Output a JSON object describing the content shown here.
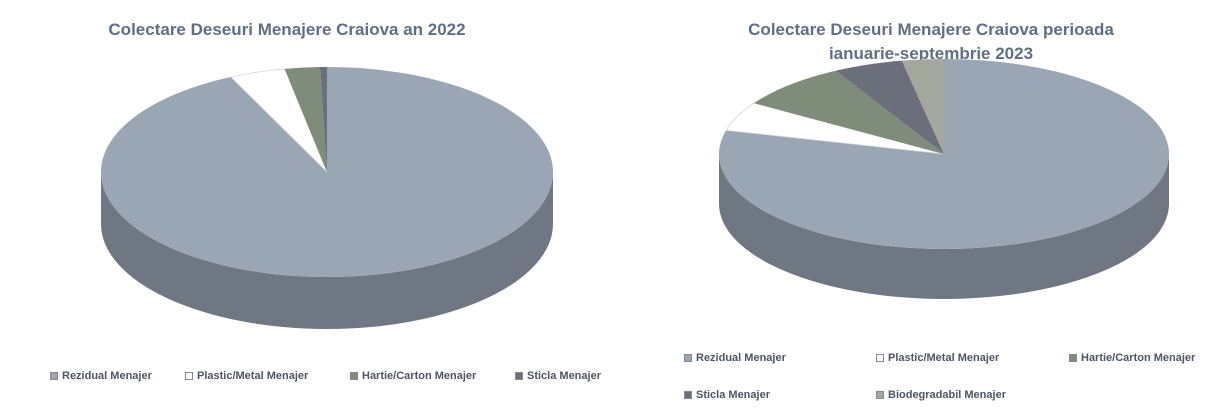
{
  "chart_data": [
    {
      "type": "pie",
      "title": "Colectare Deseuri Menajere Craiova an 2022",
      "slices": [
        {
          "label": "Rezidual Menajer",
          "value": 93,
          "color": "#9aa6b4"
        },
        {
          "label": "Plastic/Metal Menajer",
          "value": 4,
          "color": "#ffffff"
        },
        {
          "label": "Hartie/Carton Menajer",
          "value": 2.5,
          "color": "#7f8c7a"
        },
        {
          "label": "Sticla Menajer",
          "value": 0.5,
          "color": "#6b6f7b"
        }
      ],
      "legend": "bottom"
    },
    {
      "type": "pie",
      "title": "Colectare Deseuri Menajere Craiova perioada\nianuarie-septembrie 2023",
      "slices": [
        {
          "label": "Rezidual Menajer",
          "value": 79,
          "color": "#9aa6b4"
        },
        {
          "label": "Plastic/Metal Menajer",
          "value": 5,
          "color": "#ffffff"
        },
        {
          "label": "Hartie/Carton Menajer",
          "value": 8,
          "color": "#7f8c7a"
        },
        {
          "label": "Sticla Menajer",
          "value": 5,
          "color": "#6b6f7b"
        },
        {
          "label": "Biodegradabil Menajer",
          "value": 3,
          "color": "#a3a79c"
        }
      ],
      "legend": "bottom"
    }
  ]
}
